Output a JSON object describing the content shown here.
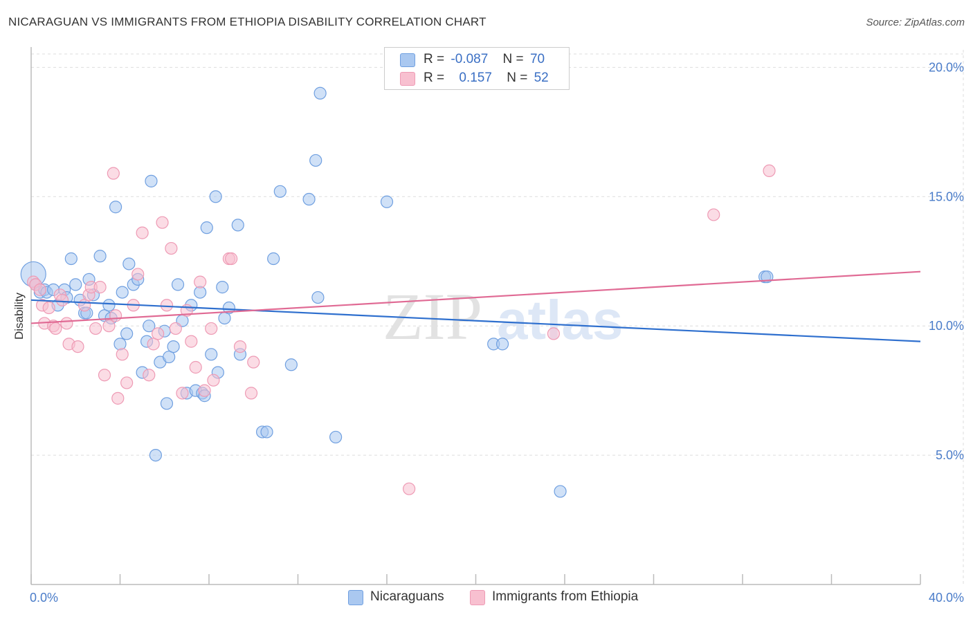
{
  "header": {
    "title": "NICARAGUAN VS IMMIGRANTS FROM ETHIOPIA DISABILITY CORRELATION CHART",
    "source": "Source: ZipAtlas.com"
  },
  "legend": {
    "rows": [
      {
        "r_label": "R =",
        "r_value": "-0.087",
        "n_label": "N =",
        "n_value": "70"
      },
      {
        "r_label": "R =",
        "r_value": "0.157",
        "n_label": "N =",
        "n_value": "52"
      }
    ],
    "bottom": [
      "Nicaraguans",
      "Immigrants from Ethiopia"
    ]
  },
  "watermark": {
    "part1": "ZIP",
    "part2": "atlas"
  },
  "colors": {
    "blue_fill": "#aac8f0",
    "blue_stroke": "#6f9fe0",
    "blue_line": "#2e6fce",
    "pink_fill": "#f8c0d0",
    "pink_stroke": "#ee9ab4",
    "pink_line": "#e06a94",
    "tick_text": "#4a7cc9",
    "grid": "#dddddd"
  },
  "chart_data": {
    "type": "scatter",
    "title": "NICARAGUAN VS IMMIGRANTS FROM ETHIOPIA DISABILITY CORRELATION CHART",
    "xlabel": "",
    "ylabel": "Disability",
    "xlim": [
      0,
      40
    ],
    "ylim": [
      0,
      21
    ],
    "x_tick_labels": [
      "0.0%",
      "40.0%"
    ],
    "y_ticks": [
      5,
      10,
      15,
      20
    ],
    "y_tick_labels": [
      "5.0%",
      "10.0%",
      "15.0%",
      "20.0%"
    ],
    "grid": true,
    "series": [
      {
        "name": "Nicaraguans",
        "r": -0.087,
        "n": 70,
        "trend": {
          "x": [
            0,
            40
          ],
          "y": [
            11.0,
            9.4
          ]
        },
        "points": [
          [
            0.1,
            12.0
          ],
          [
            0.2,
            11.6
          ],
          [
            0.4,
            11.3
          ],
          [
            0.6,
            11.4
          ],
          [
            0.7,
            11.3
          ],
          [
            1.0,
            11.4
          ],
          [
            1.2,
            10.8
          ],
          [
            1.5,
            11.4
          ],
          [
            1.6,
            11.1
          ],
          [
            1.8,
            12.6
          ],
          [
            2.0,
            11.6
          ],
          [
            2.2,
            11.0
          ],
          [
            2.4,
            10.5
          ],
          [
            2.5,
            10.5
          ],
          [
            2.6,
            11.8
          ],
          [
            2.8,
            11.2
          ],
          [
            3.1,
            12.7
          ],
          [
            3.3,
            10.4
          ],
          [
            3.5,
            10.8
          ],
          [
            3.6,
            10.3
          ],
          [
            3.8,
            14.6
          ],
          [
            4.0,
            9.3
          ],
          [
            4.1,
            11.3
          ],
          [
            4.3,
            9.7
          ],
          [
            4.4,
            12.4
          ],
          [
            4.6,
            11.6
          ],
          [
            4.8,
            11.8
          ],
          [
            5.0,
            8.2
          ],
          [
            5.2,
            9.4
          ],
          [
            5.3,
            10.0
          ],
          [
            5.4,
            15.6
          ],
          [
            5.6,
            5.0
          ],
          [
            5.8,
            8.6
          ],
          [
            6.0,
            9.8
          ],
          [
            6.1,
            7.0
          ],
          [
            6.2,
            8.8
          ],
          [
            6.4,
            9.2
          ],
          [
            6.6,
            11.6
          ],
          [
            6.8,
            10.2
          ],
          [
            7.0,
            7.4
          ],
          [
            7.2,
            10.8
          ],
          [
            7.4,
            7.5
          ],
          [
            7.6,
            11.3
          ],
          [
            7.7,
            7.4
          ],
          [
            7.8,
            7.3
          ],
          [
            7.9,
            13.8
          ],
          [
            8.1,
            8.9
          ],
          [
            8.3,
            15.0
          ],
          [
            8.4,
            8.2
          ],
          [
            8.6,
            11.5
          ],
          [
            8.7,
            10.3
          ],
          [
            8.9,
            10.7
          ],
          [
            9.3,
            13.9
          ],
          [
            9.4,
            8.9
          ],
          [
            10.4,
            5.9
          ],
          [
            10.6,
            5.9
          ],
          [
            10.9,
            12.6
          ],
          [
            11.2,
            15.2
          ],
          [
            11.7,
            8.5
          ],
          [
            12.5,
            14.9
          ],
          [
            12.8,
            16.4
          ],
          [
            12.9,
            11.1
          ],
          [
            13.0,
            19.0
          ],
          [
            13.7,
            5.7
          ],
          [
            16.0,
            14.8
          ],
          [
            20.8,
            9.3
          ],
          [
            21.2,
            9.3
          ],
          [
            23.8,
            3.6
          ],
          [
            33.0,
            11.9
          ],
          [
            33.1,
            11.9
          ]
        ]
      },
      {
        "name": "Immigrants from Ethiopia",
        "r": 0.157,
        "n": 52,
        "trend": {
          "x": [
            0,
            40
          ],
          "y": [
            10.1,
            12.1
          ]
        },
        "points": [
          [
            0.1,
            11.7
          ],
          [
            0.2,
            11.6
          ],
          [
            0.4,
            11.4
          ],
          [
            0.5,
            10.8
          ],
          [
            0.6,
            10.1
          ],
          [
            0.8,
            10.7
          ],
          [
            1.0,
            10.0
          ],
          [
            1.1,
            9.9
          ],
          [
            1.3,
            11.2
          ],
          [
            1.4,
            11.0
          ],
          [
            1.6,
            10.1
          ],
          [
            1.7,
            9.3
          ],
          [
            2.1,
            9.2
          ],
          [
            2.4,
            10.8
          ],
          [
            2.6,
            11.2
          ],
          [
            2.7,
            11.5
          ],
          [
            2.9,
            9.9
          ],
          [
            3.1,
            11.5
          ],
          [
            3.3,
            8.1
          ],
          [
            3.5,
            10.0
          ],
          [
            3.7,
            15.9
          ],
          [
            3.8,
            10.4
          ],
          [
            3.9,
            7.2
          ],
          [
            4.1,
            8.9
          ],
          [
            4.3,
            7.8
          ],
          [
            4.6,
            10.8
          ],
          [
            4.8,
            12.0
          ],
          [
            5.0,
            13.6
          ],
          [
            5.3,
            8.1
          ],
          [
            5.5,
            9.3
          ],
          [
            5.7,
            9.7
          ],
          [
            5.9,
            14.0
          ],
          [
            6.1,
            10.8
          ],
          [
            6.3,
            13.0
          ],
          [
            6.5,
            9.9
          ],
          [
            6.8,
            7.4
          ],
          [
            7.0,
            10.6
          ],
          [
            7.2,
            9.4
          ],
          [
            7.4,
            8.4
          ],
          [
            7.6,
            11.7
          ],
          [
            7.8,
            7.5
          ],
          [
            8.1,
            9.9
          ],
          [
            8.2,
            7.9
          ],
          [
            8.9,
            12.6
          ],
          [
            9.0,
            12.6
          ],
          [
            9.4,
            9.2
          ],
          [
            9.9,
            7.4
          ],
          [
            10.0,
            8.6
          ],
          [
            17.0,
            3.7
          ],
          [
            23.5,
            9.7
          ],
          [
            30.7,
            14.3
          ],
          [
            33.2,
            16.0
          ]
        ]
      }
    ]
  }
}
